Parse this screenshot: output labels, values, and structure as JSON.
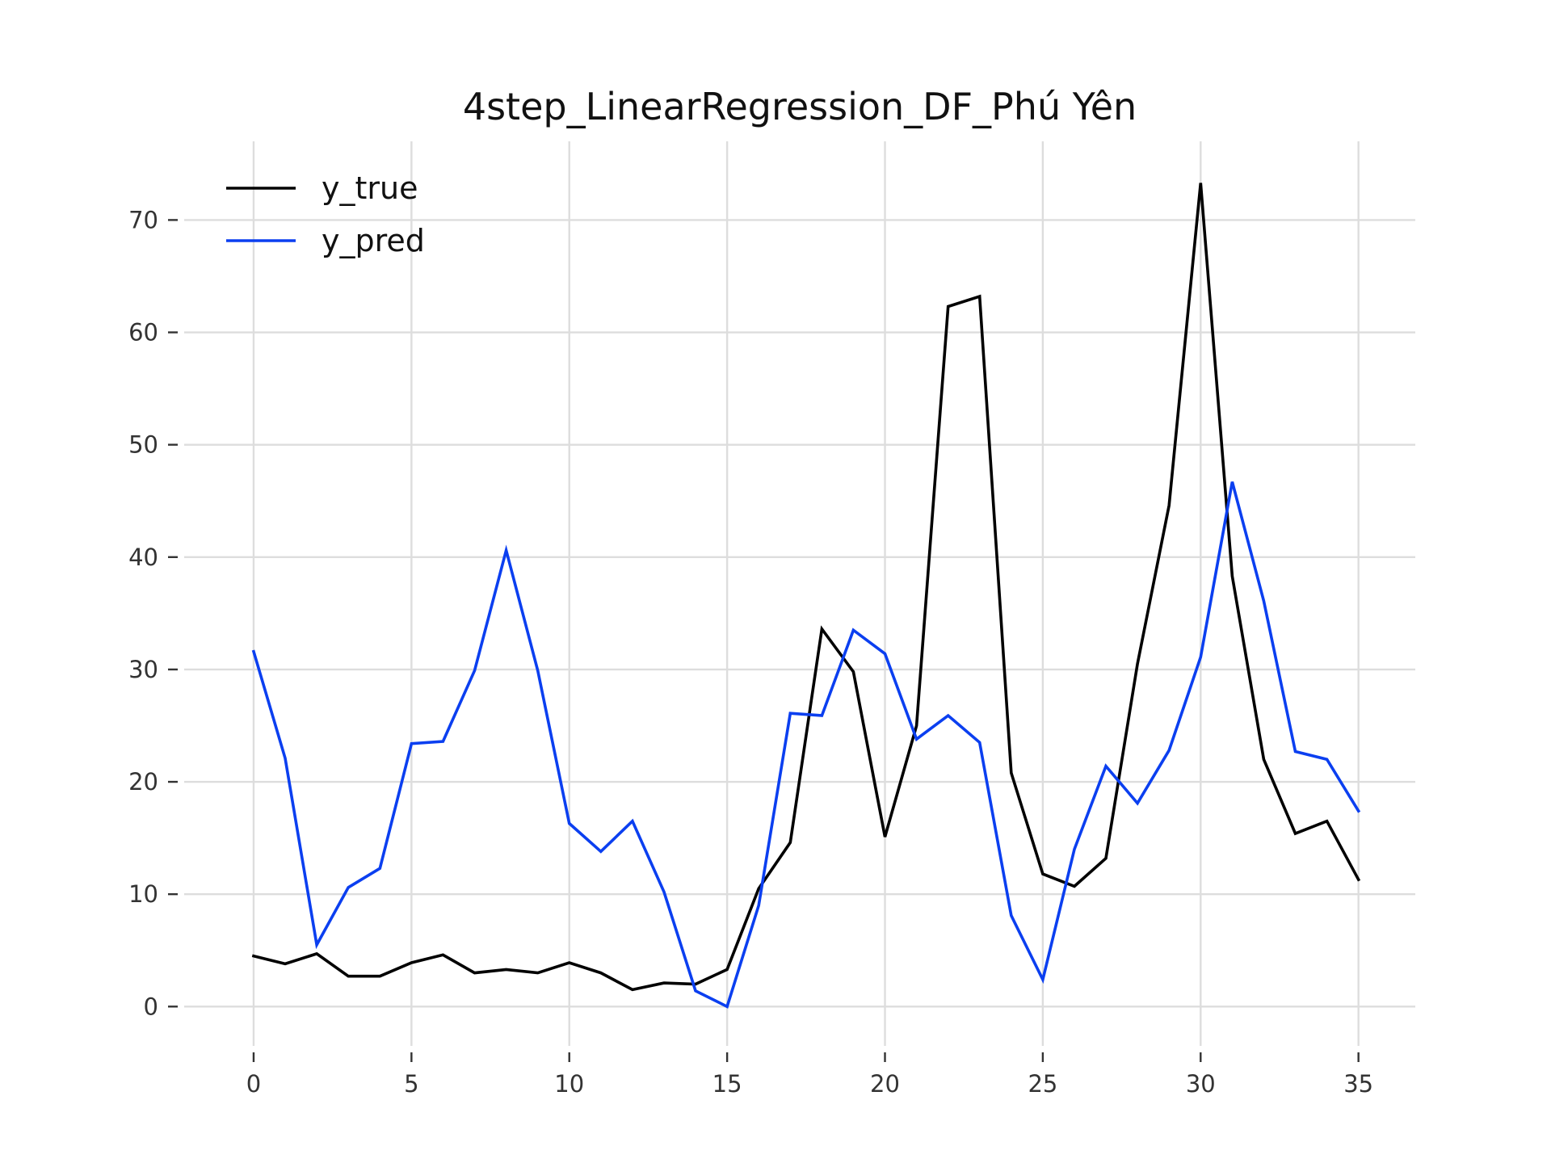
{
  "chart_data": {
    "type": "line",
    "title": "4step_LinearRegression_DF_Phú Yên",
    "xlabel": "",
    "ylabel": "",
    "xlim": [
      -2.2,
      36.8
    ],
    "ylim": [
      -3.5,
      77
    ],
    "xticks": [
      0,
      5,
      10,
      15,
      20,
      25,
      30,
      35
    ],
    "yticks": [
      0,
      10,
      20,
      30,
      40,
      50,
      60,
      70
    ],
    "grid": true,
    "legend": "top-left",
    "x": [
      0,
      1,
      2,
      3,
      4,
      5,
      6,
      7,
      8,
      9,
      10,
      11,
      12,
      13,
      14,
      15,
      16,
      17,
      18,
      19,
      20,
      21,
      22,
      23,
      24,
      25,
      26,
      27,
      28,
      29,
      30,
      31,
      32,
      33,
      34,
      35
    ],
    "series": [
      {
        "name": "y_true",
        "color": "#000000",
        "values": [
          4.5,
          3.8,
          4.7,
          2.7,
          2.7,
          3.9,
          4.6,
          3.0,
          3.3,
          3.0,
          3.9,
          3.0,
          1.5,
          2.1,
          2.0,
          3.3,
          10.5,
          14.6,
          33.6,
          29.8,
          15.1,
          25.0,
          62.3,
          63.2,
          20.8,
          11.8,
          10.7,
          13.2,
          30.5,
          44.6,
          73.3,
          38.3,
          22.0,
          15.4,
          16.5,
          11.3
        ]
      },
      {
        "name": "y_pred",
        "color": "#0b3ff0",
        "values": [
          31.6,
          22.1,
          5.5,
          10.6,
          12.3,
          23.4,
          23.6,
          29.9,
          40.6,
          29.9,
          16.3,
          13.8,
          16.5,
          10.2,
          1.4,
          0.0,
          9.0,
          26.1,
          25.9,
          33.5,
          31.4,
          23.8,
          25.9,
          23.5,
          8.1,
          2.4,
          14.0,
          21.4,
          18.1,
          22.8,
          31.1,
          46.7,
          36.1,
          22.7,
          22.0,
          17.4
        ]
      }
    ]
  }
}
